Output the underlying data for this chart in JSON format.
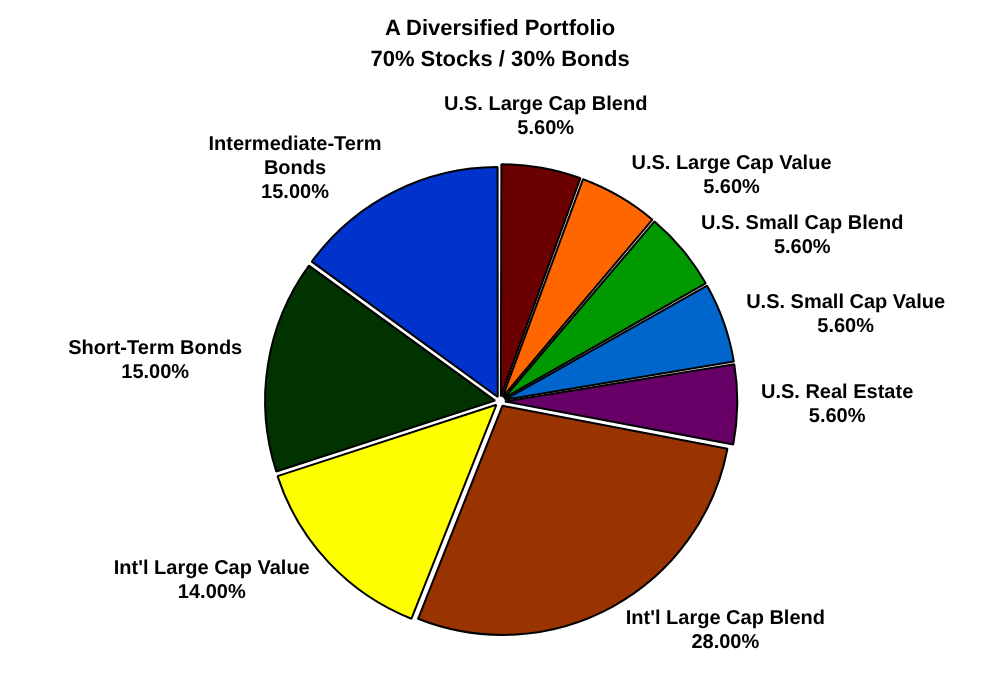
{
  "chart_data": {
    "type": "pie",
    "title": "A Diversified Portfolio",
    "subtitle": "70% Stocks / 30% Bonds",
    "categories": [
      "U.S. Large Cap Blend",
      "U.S. Large Cap Value",
      "U.S. Small Cap Blend",
      "U.S. Small Cap Value",
      "U.S. Real Estate",
      "Int'l Large Cap Blend",
      "Int'l Large Cap Value",
      "Short-Term Bonds",
      "Intermediate-Term Bonds"
    ],
    "values": [
      5.6,
      5.6,
      5.6,
      5.6,
      5.6,
      28,
      14,
      15,
      15
    ],
    "value_labels": [
      "5.60%",
      "5.60%",
      "5.60%",
      "5.60%",
      "5.60%",
      "28.00%",
      "14.00%",
      "15.00%",
      "15.00%"
    ],
    "colors": [
      "#6b0000",
      "#ff6600",
      "#009900",
      "#0066cc",
      "#660066",
      "#993300",
      "#ffff00",
      "#003300",
      "#0033cc"
    ],
    "legend": false
  }
}
